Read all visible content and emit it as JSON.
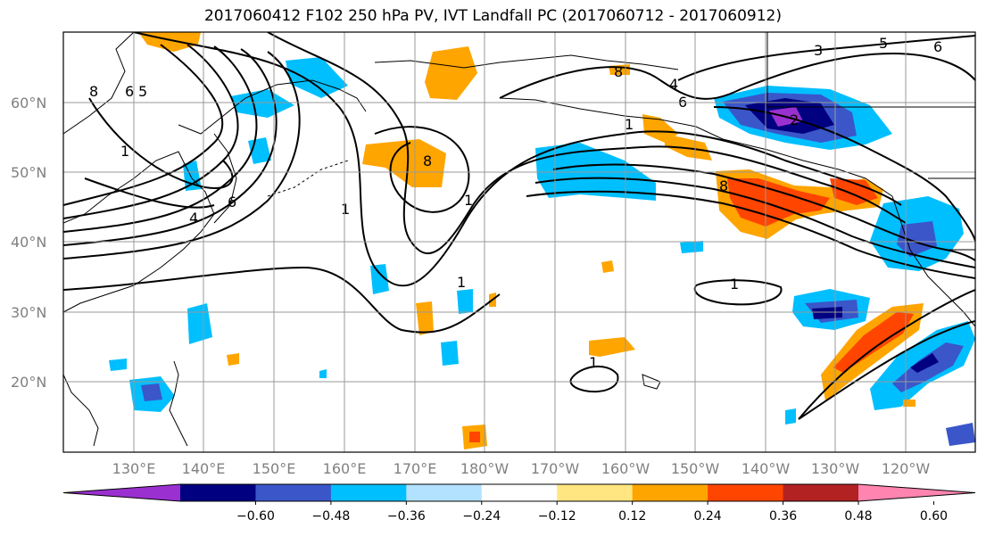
{
  "title": "2017060412 F102 250 hPa PV, IVT Landfall PC (2017060712 - 2017060912)",
  "map": {
    "lon_labels": [
      "130°E",
      "140°E",
      "150°E",
      "160°E",
      "170°E",
      "180°W",
      "170°W",
      "160°W",
      "150°W",
      "140°W",
      "130°W",
      "120°W"
    ],
    "lat_labels": [
      "60°N",
      "50°N",
      "40°N",
      "30°N",
      "20°N"
    ],
    "contour_labels": [
      "8",
      "6",
      "5",
      "1",
      "4",
      "6",
      "1",
      "8",
      "1",
      "1",
      "1",
      "4",
      "6",
      "8",
      "3",
      "5",
      "6",
      "1",
      "1",
      "2",
      "8"
    ],
    "grid": true,
    "fill_field": "IVT Landfall PC",
    "contour_field": "250 hPa PV"
  },
  "colorbar": {
    "ticks": [
      "−0.60",
      "−0.48",
      "−0.36",
      "−0.24",
      "−0.12",
      "0.12",
      "0.24",
      "0.36",
      "0.48",
      "0.60"
    ],
    "colors": [
      "#9b30d0",
      "#000080",
      "#3a56c9",
      "#00bfff",
      "#b2e2ff",
      "#ffffff",
      "#ffe680",
      "#ffa500",
      "#ff4500",
      "#b22222",
      "#ff85b0"
    ],
    "extend": "both"
  }
}
